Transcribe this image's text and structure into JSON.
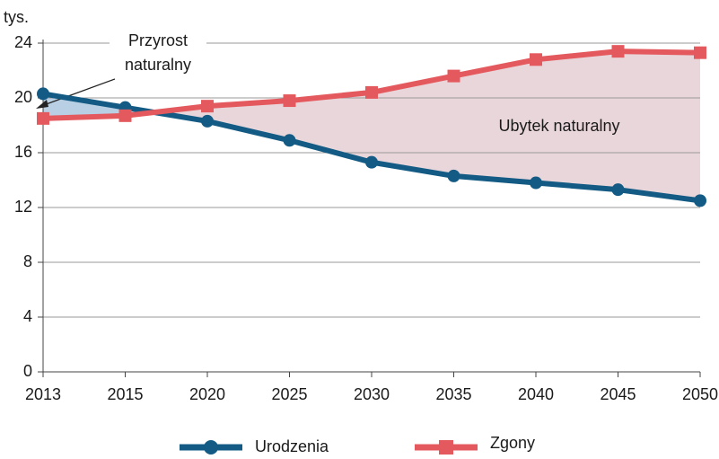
{
  "chart_data": {
    "type": "line",
    "unit_label": "tys.",
    "categories": [
      "2013",
      "2015",
      "2020",
      "2025",
      "2030",
      "2035",
      "2040",
      "2045",
      "2050"
    ],
    "series": [
      {
        "name": "Urodzenia",
        "color": "#135b84",
        "marker": "circle",
        "values": [
          20.3,
          19.3,
          18.3,
          16.9,
          15.3,
          14.3,
          13.8,
          13.3,
          12.5
        ]
      },
      {
        "name": "Zgony",
        "color": "#e4595d",
        "marker": "square",
        "values": [
          18.5,
          18.7,
          19.4,
          19.8,
          20.4,
          21.6,
          22.8,
          23.4,
          23.3
        ]
      }
    ],
    "between_fill": [
      "#b8cfe4",
      "#e9d6da"
    ],
    "annotations": {
      "gain": [
        "Przyrost",
        "naturalny"
      ],
      "loss": "Ubytek naturalny"
    },
    "ylim": [
      0,
      24
    ],
    "yticks": [
      0,
      4,
      8,
      12,
      16,
      20,
      24
    ],
    "grid": true
  }
}
